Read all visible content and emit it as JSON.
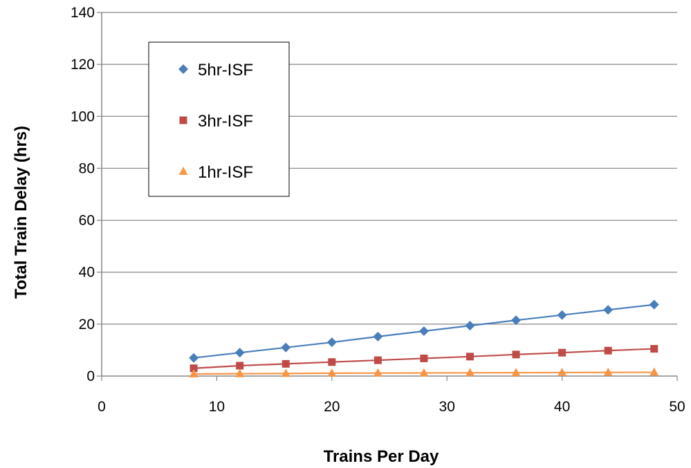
{
  "chart_data": {
    "type": "line",
    "title": "",
    "xlabel": "Trains Per Day",
    "ylabel": "Total Train Delay (hrs)",
    "xlim": [
      0,
      50
    ],
    "ylim": [
      0,
      140
    ],
    "xticks": [
      "0",
      "10",
      "20",
      "30",
      "40",
      "50"
    ],
    "yticks": [
      "0",
      "20",
      "40",
      "60",
      "80",
      "100",
      "120",
      "140"
    ],
    "grid": "horizontal",
    "legend_position": "top-left",
    "x": [
      8,
      12,
      16,
      20,
      24,
      28,
      32,
      36,
      40,
      44,
      48
    ],
    "series": [
      {
        "name": "5hr-ISF",
        "color": "#4a7ebb",
        "marker": "diamond",
        "values": [
          7,
          9,
          11,
          13,
          15.2,
          17.3,
          19.4,
          21.5,
          23.5,
          25.5,
          27.5
        ]
      },
      {
        "name": "3hr-ISF",
        "color": "#be4b48",
        "marker": "square",
        "values": [
          3,
          4,
          4.7,
          5.4,
          6.1,
          6.8,
          7.5,
          8.3,
          9,
          9.8,
          10.5
        ]
      },
      {
        "name": "1hr-ISF",
        "color": "#f79646",
        "marker": "triangle",
        "values": [
          0.8,
          0.9,
          1,
          1.1,
          1.15,
          1.2,
          1.25,
          1.3,
          1.35,
          1.4,
          1.45
        ]
      }
    ]
  }
}
